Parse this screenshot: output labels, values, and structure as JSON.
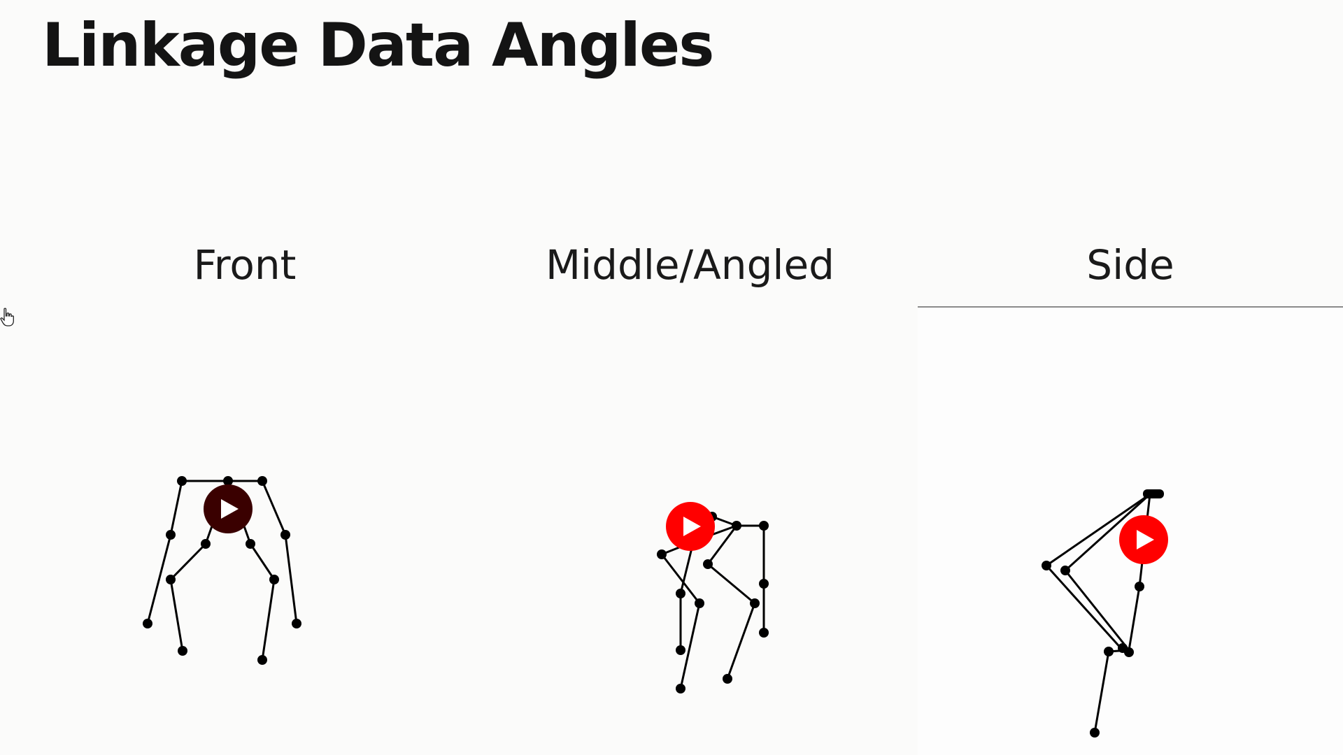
{
  "header": {
    "title": "Linkage Data Angles"
  },
  "tabs": [
    {
      "label": "Front",
      "selected": false
    },
    {
      "label": "Middle/Angled",
      "selected": false
    },
    {
      "label": "Side",
      "selected": true
    }
  ],
  "videos": [
    {
      "view": "front",
      "play_icon": "play-icon",
      "button_color": "#3a0000"
    },
    {
      "view": "middle",
      "play_icon": "play-icon",
      "button_color": "#ff0000"
    },
    {
      "view": "side",
      "play_icon": "play-icon",
      "button_color": "#ff0000"
    }
  ],
  "colors": {
    "background": "#fbfbfa",
    "text": "#141414",
    "skeleton": "#000000",
    "active_tab_underline": "#8a8a8a"
  },
  "cursor": {
    "icon": "hand-pointer-icon"
  }
}
